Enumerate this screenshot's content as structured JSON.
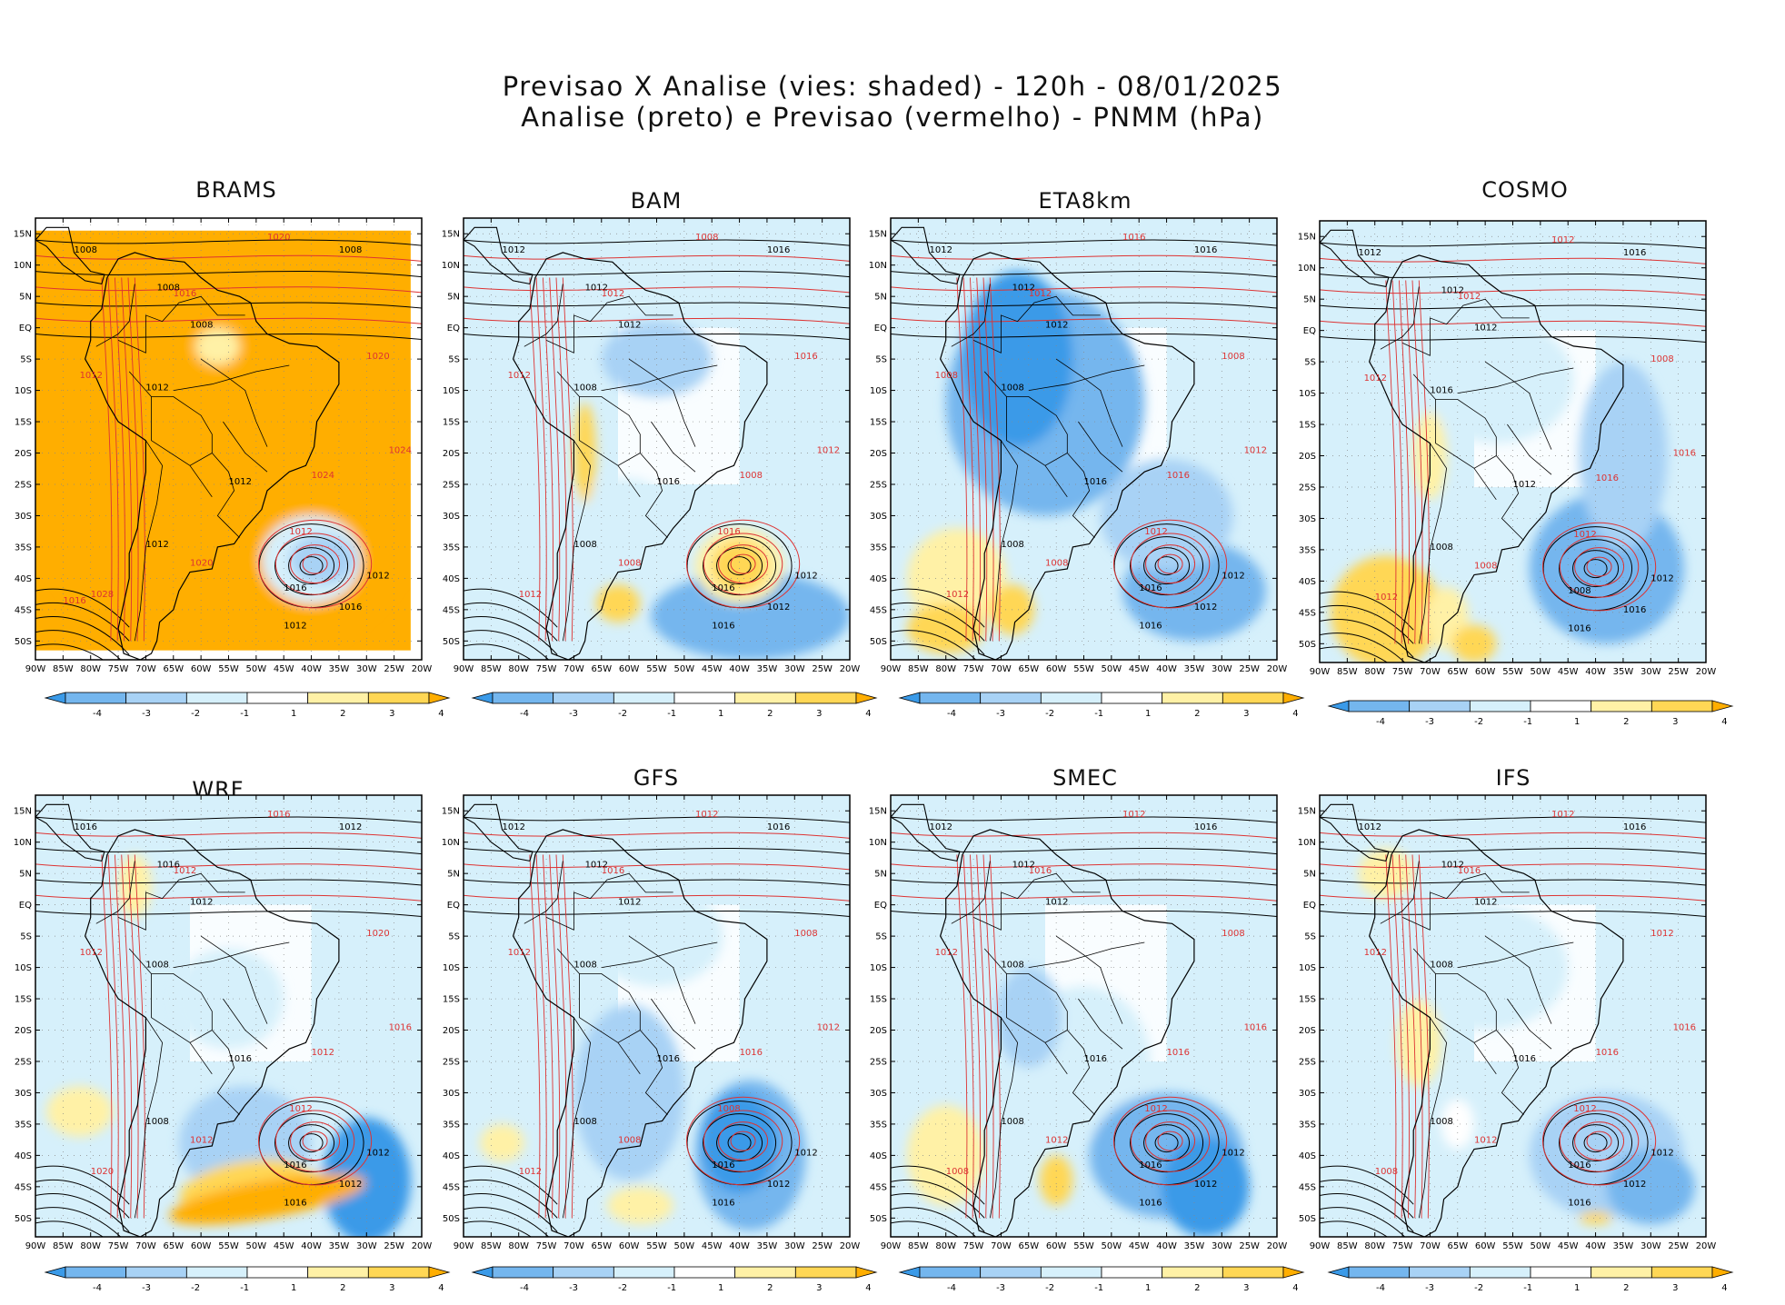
{
  "title": {
    "line1": "Previsao X Analise (vies: shaded) - 120h - 08/01/2025",
    "line2": "Analise (preto) e Previsao (vermelho) - PNMM (hPa)"
  },
  "axes": {
    "lat_labels": [
      "15N",
      "10N",
      "5N",
      "EQ",
      "5S",
      "10S",
      "15S",
      "20S",
      "25S",
      "30S",
      "35S",
      "40S",
      "45S",
      "50S"
    ],
    "lon_labels": [
      "90W",
      "85W",
      "80W",
      "75W",
      "70W",
      "65W",
      "60W",
      "55W",
      "50W",
      "45W",
      "40W",
      "35W",
      "30W",
      "25W",
      "20W"
    ]
  },
  "colorbar": {
    "labels": [
      "-4",
      "-3",
      "-2",
      "-1",
      "1",
      "2",
      "3",
      "4"
    ],
    "colors": [
      "#3a9ae8",
      "#74b6ee",
      "#a8d2f5",
      "#d6f0fb",
      "#ffffff",
      "#fff1a6",
      "#ffd755",
      "#ffae00"
    ]
  },
  "colors": {
    "analysis_contour": "#000000",
    "forecast_contour": "#dd3333",
    "grid": "#888888"
  },
  "panels": [
    {
      "id": "brams",
      "title": "BRAMS",
      "analysis_labels": [
        "1008",
        "1008",
        "1008",
        "1008",
        "1012",
        "1012",
        "1016",
        "1016",
        "1012",
        "1012",
        "1012"
      ],
      "forecast_labels": [
        "1020",
        "1016",
        "1012",
        "1020",
        "1024",
        "1012",
        "1024",
        "1028",
        "1020",
        "1016"
      ]
    },
    {
      "id": "bam",
      "title": "BAM",
      "analysis_labels": [
        "1012",
        "1016",
        "1012",
        "1012",
        "1008",
        "1016",
        "1012",
        "1016",
        "1012",
        "1016",
        "1008"
      ],
      "forecast_labels": [
        "1008",
        "1012",
        "1012",
        "1016",
        "1012",
        "1016",
        "1008",
        "1012",
        "1008"
      ]
    },
    {
      "id": "eta8km",
      "title": "ETA8km",
      "analysis_labels": [
        "1012",
        "1016",
        "1012",
        "1012",
        "1008",
        "1016",
        "1012",
        "1016",
        "1012",
        "1016",
        "1008"
      ],
      "forecast_labels": [
        "1016",
        "1012",
        "1008",
        "1008",
        "1012",
        "1012",
        "1016",
        "1012",
        "1008"
      ]
    },
    {
      "id": "cosmo",
      "title": "COSMO",
      "analysis_labels": [
        "1012",
        "1016",
        "1012",
        "1012",
        "1016",
        "1012",
        "1016",
        "1008",
        "1012",
        "1016",
        "1008"
      ],
      "forecast_labels": [
        "1012",
        "1012",
        "1012",
        "1008",
        "1016",
        "1012",
        "1016",
        "1012",
        "1008"
      ]
    },
    {
      "id": "wrf",
      "title": "WRF",
      "analysis_labels": [
        "1016",
        "1012",
        "1016",
        "1012",
        "1008",
        "1016",
        "1012",
        "1016",
        "1012",
        "1016",
        "1008"
      ],
      "forecast_labels": [
        "1016",
        "1012",
        "1012",
        "1020",
        "1016",
        "1012",
        "1012",
        "1020",
        "1012"
      ]
    },
    {
      "id": "gfs",
      "title": "GFS",
      "analysis_labels": [
        "1012",
        "1016",
        "1012",
        "1012",
        "1008",
        "1016",
        "1012",
        "1016",
        "1012",
        "1016",
        "1008"
      ],
      "forecast_labels": [
        "1012",
        "1016",
        "1012",
        "1008",
        "1012",
        "1008",
        "1016",
        "1012",
        "1008"
      ]
    },
    {
      "id": "smec",
      "title": "SMEC",
      "analysis_labels": [
        "1012",
        "1016",
        "1012",
        "1012",
        "1008",
        "1016",
        "1012",
        "1016",
        "1012",
        "1016",
        "1008"
      ],
      "forecast_labels": [
        "1012",
        "1016",
        "1012",
        "1008",
        "1016",
        "1012",
        "1016",
        "1008",
        "1012"
      ]
    },
    {
      "id": "ifs",
      "title": "IFS",
      "analysis_labels": [
        "1012",
        "1016",
        "1012",
        "1012",
        "1008",
        "1016",
        "1012",
        "1016",
        "1012",
        "1016",
        "1008"
      ],
      "forecast_labels": [
        "1012",
        "1016",
        "1012",
        "1012",
        "1016",
        "1012",
        "1016",
        "1008",
        "1012"
      ]
    }
  ]
}
